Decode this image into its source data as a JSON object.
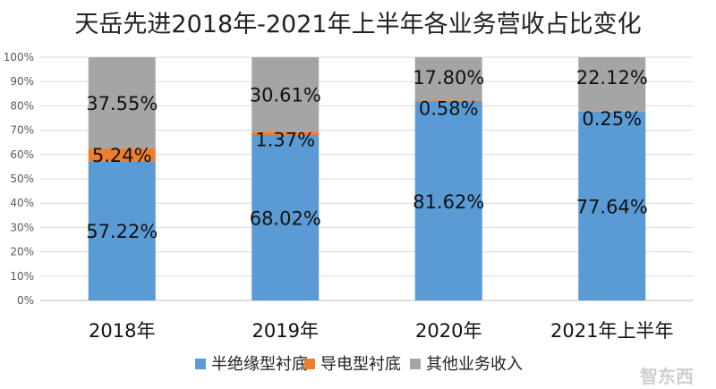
{
  "chart_data": {
    "type": "bar",
    "stacked": true,
    "title": "天岳先进2018年-2021年上半年各业务营收占比变化",
    "categories": [
      "2018年",
      "2019年",
      "2020年",
      "2021年上半年"
    ],
    "series": [
      {
        "name": "半绝缘型衬底",
        "values": [
          57.22,
          68.02,
          81.62,
          77.64
        ],
        "labels": [
          "57.22%",
          "68.02%",
          "81.62%",
          "77.64%"
        ],
        "color": "#5b9bd5"
      },
      {
        "name": "导电型衬底",
        "values": [
          5.24,
          1.37,
          0.58,
          0.25
        ],
        "labels": [
          "5.24%",
          "1.37%",
          "0.58%",
          "0.25%"
        ],
        "color": "#ed7d31"
      },
      {
        "name": "其他业务收入",
        "values": [
          37.55,
          30.61,
          17.8,
          22.12
        ],
        "labels": [
          "37.55%",
          "30.61%",
          "17.80%",
          "22.12%"
        ],
        "color": "#a5a5a5"
      }
    ],
    "ylim": [
      0,
      100
    ],
    "yticks": [
      "0%",
      "10%",
      "20%",
      "30%",
      "40%",
      "50%",
      "60%",
      "70%",
      "80%",
      "90%",
      "100%"
    ],
    "grid": true,
    "legend": "bottom"
  },
  "watermark": "智东西"
}
